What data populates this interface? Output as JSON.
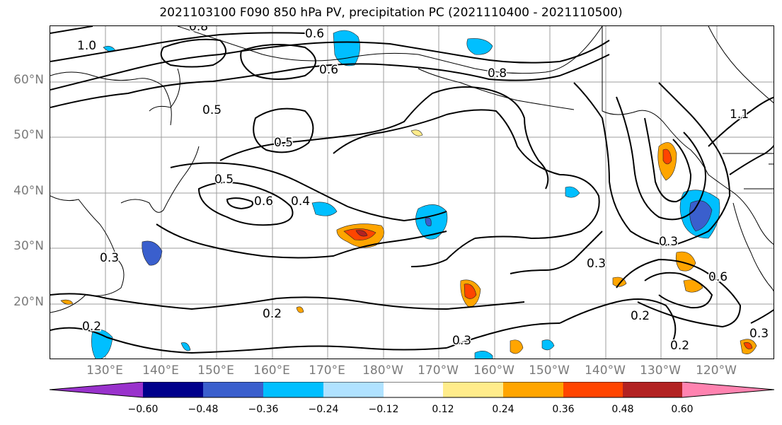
{
  "title": "2021103100 F090 850 hPa PV, precipitation PC (2021110400 - 2021110500)",
  "lat_labels": [
    "60°N",
    "50°N",
    "40°N",
    "30°N",
    "20°N"
  ],
  "lon_labels": [
    "130°E",
    "140°E",
    "150°E",
    "160°E",
    "170°E",
    "180°W",
    "170°W",
    "160°W",
    "150°W",
    "140°W",
    "130°W",
    "120°W"
  ],
  "contour_labels": [
    "1.0",
    "0.8",
    "0.6",
    "0.6",
    "0.8",
    "0.5",
    "0.5",
    "0.5",
    "0.6",
    "0.4",
    "0.3",
    "0.3",
    "0.3",
    "0.2",
    "0.2",
    "0.3",
    "0.2",
    "0.6",
    "1.1",
    "0.3",
    "0.2"
  ],
  "colorbar": {
    "ticks": [
      "−0.60",
      "−0.48",
      "−0.36",
      "−0.24",
      "−0.12",
      "0.12",
      "0.24",
      "0.36",
      "0.48",
      "0.60"
    ],
    "colors": [
      "#9932cc",
      "#00008b",
      "#3a5fcd",
      "#00bfff",
      "#b0e2ff",
      "#ffffff",
      "#ffec8b",
      "#ffa500",
      "#ff4500",
      "#b22222",
      "#ff83b0"
    ]
  }
}
